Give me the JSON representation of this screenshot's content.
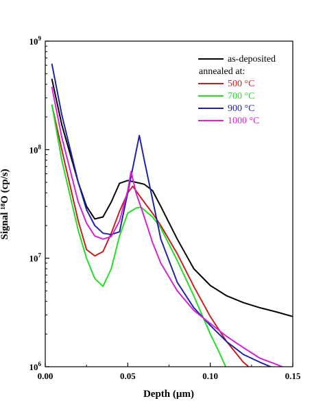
{
  "chart_data": {
    "type": "line",
    "title": "",
    "xlabel": "Depth (µm)",
    "ylabel": "Signal ¹⁸O (cp/s)",
    "xlim": [
      0.0,
      0.15
    ],
    "ylim": [
      1000000,
      1000000000
    ],
    "yscale": "log",
    "xticks": [
      {
        "value": 0.0,
        "label": "0.00"
      },
      {
        "value": 0.05,
        "label": "0.05"
      },
      {
        "value": 0.1,
        "label": "0.10"
      },
      {
        "value": 0.15,
        "label": "0.15"
      }
    ],
    "yticks": [
      {
        "value": 1000000,
        "base": "10",
        "exp": "6"
      },
      {
        "value": 10000000,
        "base": "10",
        "exp": "7"
      },
      {
        "value": 100000000,
        "base": "10",
        "exp": "8"
      },
      {
        "value": 1000000000,
        "base": "10",
        "exp": "9"
      }
    ],
    "grid": false,
    "legend": {
      "placement": "top-right",
      "subtitle": "annealed at:",
      "subtitle_after_index": 0
    },
    "series": [
      {
        "name": "as-deposited",
        "color": "#000000",
        "x": [
          0.004,
          0.01,
          0.02,
          0.025,
          0.03,
          0.035,
          0.04,
          0.045,
          0.05,
          0.055,
          0.06,
          0.065,
          0.07,
          0.08,
          0.09,
          0.1,
          0.11,
          0.12,
          0.13,
          0.14,
          0.15
        ],
        "y": [
          450000000,
          170000000,
          50000000,
          30000000,
          23000000,
          24000000,
          33000000,
          49000000,
          52000000,
          50000000,
          48000000,
          42000000,
          30000000,
          15000000,
          8000000,
          5600000,
          4500000,
          3900000,
          3500000,
          3200000,
          2900000
        ]
      },
      {
        "name": "500 °C",
        "color": "#c81e1e",
        "x": [
          0.004,
          0.01,
          0.02,
          0.025,
          0.03,
          0.035,
          0.04,
          0.045,
          0.05,
          0.053,
          0.058,
          0.065,
          0.07,
          0.08,
          0.09,
          0.1,
          0.11,
          0.12,
          0.125
        ],
        "y": [
          260000000,
          100000000,
          22000000,
          12000000,
          10500000,
          11500000,
          17000000,
          27000000,
          40000000,
          46000000,
          36000000,
          26000000,
          20000000,
          11000000,
          5500000,
          2900000,
          1700000,
          1100000,
          950000
        ]
      },
      {
        "name": "700 °C",
        "color": "#22dd22",
        "x": [
          0.004,
          0.01,
          0.02,
          0.025,
          0.03,
          0.035,
          0.04,
          0.045,
          0.05,
          0.055,
          0.058,
          0.065,
          0.07,
          0.08,
          0.09,
          0.1,
          0.105,
          0.11
        ],
        "y": [
          260000000,
          80000000,
          18000000,
          10000000,
          6500000,
          5500000,
          8000000,
          16000000,
          26000000,
          29000000,
          29500000,
          24000000,
          19000000,
          9500000,
          4500000,
          2000000,
          1400000,
          950000
        ]
      },
      {
        "name": "900 °C",
        "color": "#1f22a8",
        "x": [
          0.004,
          0.01,
          0.02,
          0.025,
          0.03,
          0.035,
          0.04,
          0.045,
          0.05,
          0.057,
          0.06,
          0.065,
          0.07,
          0.08,
          0.09,
          0.1,
          0.11,
          0.12,
          0.13,
          0.14
        ],
        "y": [
          620000000,
          210000000,
          50000000,
          28000000,
          20000000,
          17000000,
          16500000,
          17500000,
          40000000,
          135000000,
          80000000,
          35000000,
          15000000,
          6000000,
          3500000,
          2400000,
          1700000,
          1300000,
          1100000,
          950000
        ]
      },
      {
        "name": "1000 °C",
        "color": "#d421d4",
        "x": [
          0.004,
          0.01,
          0.02,
          0.025,
          0.03,
          0.035,
          0.04,
          0.045,
          0.05,
          0.052,
          0.055,
          0.06,
          0.065,
          0.07,
          0.08,
          0.09,
          0.1,
          0.11,
          0.12,
          0.13,
          0.14,
          0.145
        ],
        "y": [
          380000000,
          130000000,
          33000000,
          21000000,
          16000000,
          15000000,
          15800000,
          22000000,
          42000000,
          63000000,
          40000000,
          24000000,
          14000000,
          9000000,
          5000000,
          3300000,
          2500000,
          1900000,
          1500000,
          1200000,
          1050000,
          980000
        ]
      }
    ]
  }
}
